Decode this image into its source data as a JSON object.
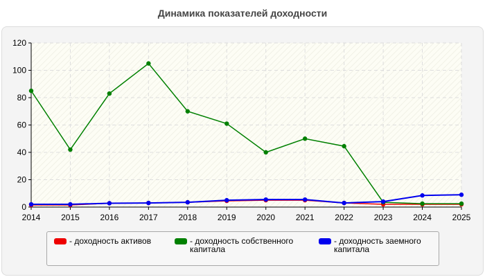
{
  "chart_data": {
    "type": "line",
    "title": "Динамика показателей доходности",
    "x": [
      "2014",
      "2015",
      "2016",
      "2017",
      "2018",
      "2019",
      "2020",
      "2021",
      "2022",
      "2023",
      "2024",
      "2025"
    ],
    "ylim": [
      0,
      120
    ],
    "yticks": [
      "0",
      "20",
      "40",
      "60",
      "80",
      "100",
      "120"
    ],
    "grid": true,
    "legend_position": "bottom",
    "series": [
      {
        "name": "- доходность активов",
        "color": "#ee0000",
        "values": [
          1.5,
          1.5,
          2.8,
          3.0,
          3.5,
          4.5,
          5.0,
          5.0,
          3.0,
          2.0,
          2.0,
          2.0
        ]
      },
      {
        "name": "- доходность собственного капитала",
        "color": "#008000",
        "values": [
          85,
          42,
          83,
          105,
          70,
          61,
          40,
          50,
          44.5,
          3.5,
          2.5,
          2.5
        ]
      },
      {
        "name": "- доходность заемного капитала",
        "color": "#0000ee",
        "values": [
          2.0,
          2.0,
          2.8,
          3.0,
          3.5,
          5.0,
          5.5,
          5.5,
          3.0,
          4.0,
          8.5,
          9.0
        ]
      }
    ]
  }
}
